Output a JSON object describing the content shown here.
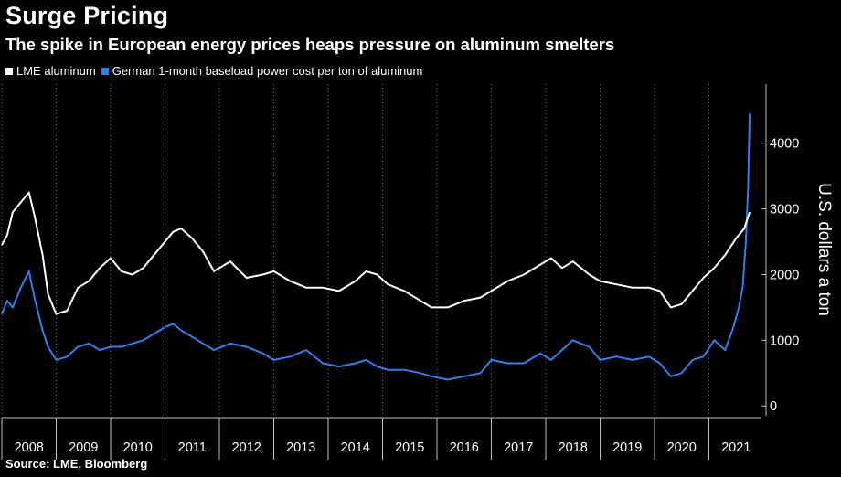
{
  "title": "Surge Pricing",
  "subtitle": "The spike in European energy prices heaps pressure on aluminum smelters",
  "source": "Source: LME, Bloomberg",
  "chart_data": {
    "type": "line",
    "xlabel": "",
    "ylabel": "U.S. dollars a ton",
    "xlim": [
      2008.0,
      2021.95
    ],
    "ylim": [
      -150,
      4900
    ],
    "y_ticks": [
      0,
      1000,
      2000,
      3000,
      4000
    ],
    "x_ticks": [
      "2008",
      "2009",
      "2010",
      "2011",
      "2012",
      "2013",
      "2014",
      "2015",
      "2016",
      "2017",
      "2018",
      "2019",
      "2020",
      "2021"
    ],
    "grid": "vertical-dotted",
    "legend_position": "top-left",
    "series": [
      {
        "name": "LME aluminum",
        "color": "#ffffff",
        "x": [
          2008.0,
          2008.1,
          2008.2,
          2008.35,
          2008.5,
          2008.6,
          2008.75,
          2008.85,
          2009.0,
          2009.2,
          2009.4,
          2009.6,
          2009.8,
          2010.0,
          2010.2,
          2010.4,
          2010.6,
          2010.8,
          2011.0,
          2011.15,
          2011.3,
          2011.5,
          2011.7,
          2011.9,
          2012.2,
          2012.5,
          2012.8,
          2013.0,
          2013.3,
          2013.6,
          2013.9,
          2014.2,
          2014.5,
          2014.7,
          2014.9,
          2015.1,
          2015.4,
          2015.7,
          2015.9,
          2016.2,
          2016.5,
          2016.8,
          2017.0,
          2017.3,
          2017.6,
          2017.9,
          2018.1,
          2018.3,
          2018.5,
          2018.8,
          2019.0,
          2019.3,
          2019.6,
          2019.9,
          2020.1,
          2020.3,
          2020.5,
          2020.7,
          2020.9,
          2021.1,
          2021.3,
          2021.5,
          2021.65,
          2021.75
        ],
        "values": [
          2450,
          2600,
          2950,
          3100,
          3250,
          2900,
          2300,
          1700,
          1400,
          1450,
          1800,
          1900,
          2100,
          2250,
          2050,
          2000,
          2100,
          2300,
          2500,
          2650,
          2700,
          2550,
          2350,
          2050,
          2200,
          1950,
          2000,
          2050,
          1900,
          1800,
          1800,
          1750,
          1900,
          2050,
          2000,
          1850,
          1750,
          1600,
          1500,
          1500,
          1600,
          1650,
          1750,
          1900,
          2000,
          2150,
          2250,
          2100,
          2200,
          2000,
          1900,
          1850,
          1800,
          1800,
          1750,
          1500,
          1550,
          1750,
          1950,
          2100,
          2300,
          2550,
          2700,
          2950
        ]
      },
      {
        "name": "German 1-month baseload power cost per ton of aluminum",
        "color": "#2f80ed",
        "x": [
          2008.0,
          2008.1,
          2008.2,
          2008.35,
          2008.5,
          2008.6,
          2008.75,
          2008.85,
          2009.0,
          2009.2,
          2009.4,
          2009.6,
          2009.8,
          2010.0,
          2010.2,
          2010.4,
          2010.6,
          2010.8,
          2011.0,
          2011.15,
          2011.3,
          2011.5,
          2011.7,
          2011.9,
          2012.2,
          2012.5,
          2012.8,
          2013.0,
          2013.3,
          2013.6,
          2013.9,
          2014.2,
          2014.5,
          2014.7,
          2014.9,
          2015.1,
          2015.4,
          2015.7,
          2015.9,
          2016.2,
          2016.5,
          2016.8,
          2017.0,
          2017.3,
          2017.6,
          2017.9,
          2018.1,
          2018.3,
          2018.5,
          2018.8,
          2019.0,
          2019.3,
          2019.6,
          2019.9,
          2020.1,
          2020.3,
          2020.5,
          2020.7,
          2020.9,
          2021.1,
          2021.3,
          2021.45,
          2021.55,
          2021.62,
          2021.68,
          2021.72,
          2021.75
        ],
        "values": [
          1400,
          1600,
          1500,
          1800,
          2050,
          1650,
          1150,
          900,
          700,
          750,
          900,
          950,
          850,
          900,
          900,
          950,
          1000,
          1100,
          1200,
          1250,
          1150,
          1050,
          950,
          850,
          950,
          900,
          800,
          700,
          750,
          850,
          650,
          600,
          650,
          700,
          600,
          550,
          550,
          500,
          450,
          400,
          450,
          500,
          700,
          650,
          650,
          800,
          700,
          850,
          1000,
          900,
          700,
          750,
          700,
          750,
          650,
          450,
          500,
          700,
          750,
          1000,
          850,
          1200,
          1500,
          1800,
          2500,
          3300,
          4450
        ]
      }
    ]
  }
}
